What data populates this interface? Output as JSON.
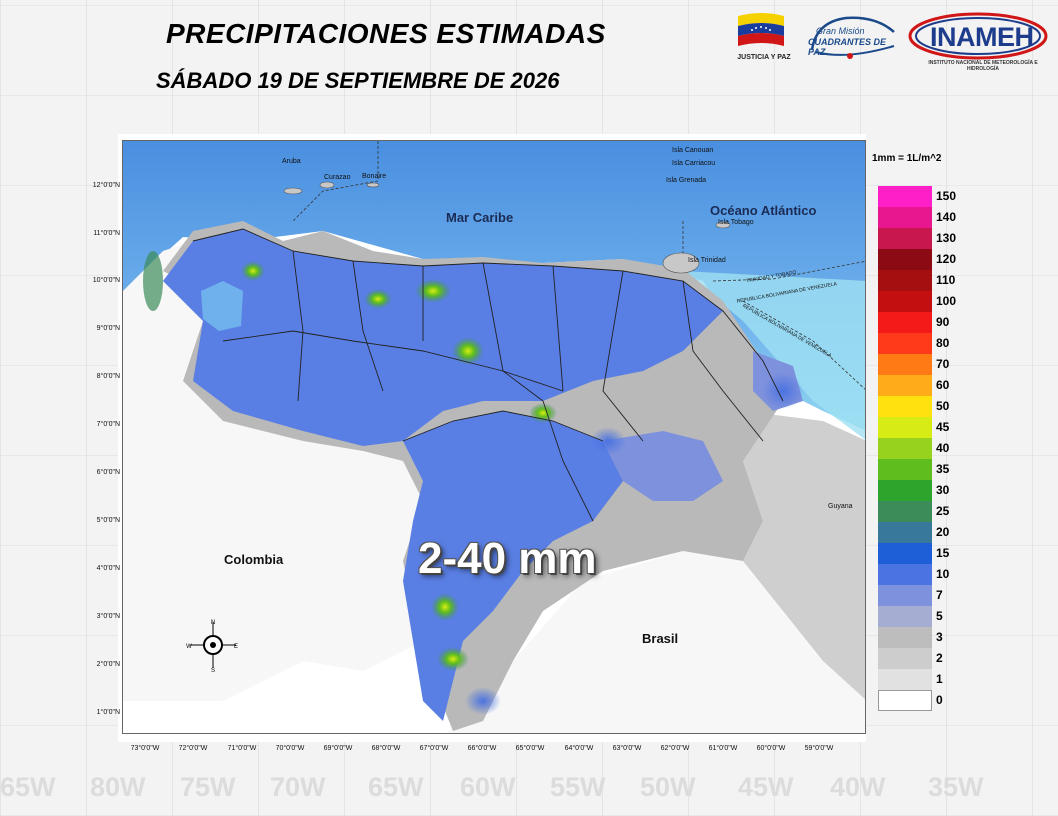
{
  "header": {
    "title": "PRECIPITACIONES ESTIMADAS",
    "date": "SÁBADO 19 DE SEPTIEMBRE DE 2026"
  },
  "logos": {
    "flag_caption": "JUSTICIA Y PAZ",
    "gran_mision_line1": "Gran Misión",
    "gran_mision_line2": "CUADRANTES DE PAZ",
    "inameh": "INAMEH",
    "inameh_caption": "INSTITUTO NACIONAL DE METEOROLOGÍA E HIDROLOGÍA"
  },
  "background_ticks": [
    "65W",
    "80W",
    "75W",
    "70W",
    "65W",
    "60W",
    "55W",
    "50W",
    "45W",
    "40W",
    "35W"
  ],
  "map": {
    "latitude_labels": [
      "12°0'0\"N",
      "11°0'0\"N",
      "10°0'0\"N",
      "9°0'0\"N",
      "8°0'0\"N",
      "7°0'0\"N",
      "6°0'0\"N",
      "5°0'0\"N",
      "4°0'0\"N",
      "3°0'0\"N",
      "2°0'0\"N",
      "1°0'0\"N"
    ],
    "longitude_labels": [
      "73°0'0\"W",
      "72°0'0\"W",
      "71°0'0\"W",
      "70°0'0\"W",
      "69°0'0\"W",
      "68°0'0\"W",
      "67°0'0\"W",
      "66°0'0\"W",
      "65°0'0\"W",
      "64°0'0\"W",
      "63°0'0\"W",
      "62°0'0\"W",
      "61°0'0\"W",
      "60°0'0\"W",
      "59°0'0\"W"
    ],
    "sea_label": "Mar Caribe",
    "ocean_label": "Océano Atlántico",
    "country_colombia": "Colombia",
    "country_brasil": "Brasil",
    "country_guyana": "Guyana",
    "place_aruba": "Aruba",
    "place_curazao": "Curazao",
    "place_bonaire": "Bonaire",
    "place_canouan": "Isla Canouan",
    "place_carriacou": "Isla Carriacou",
    "place_grenada": "Isla Grenada",
    "place_tobago": "Isla Tobago",
    "place_trinidad": "Isla Trinidad",
    "border_note_1": "TRINIDAD Y TOBAGO",
    "border_note_2": "REPUBLICA BOLIVARIANA DE VENEZUELA",
    "border_note_3": "REPUBLICA BOLIVARIANA DE VENEZUELA",
    "rainfall_range": "2-40 mm",
    "compass": {
      "n": "N",
      "s": "S",
      "e": "E",
      "w": "W"
    }
  },
  "legend": {
    "unit_note": "1mm = 1L/m^2",
    "items": [
      {
        "label": "150",
        "color": "#ff1fc8"
      },
      {
        "label": "140",
        "color": "#e8168f"
      },
      {
        "label": "130",
        "color": "#c8164f"
      },
      {
        "label": "120",
        "color": "#8c0a14"
      },
      {
        "label": "110",
        "color": "#a50f0f"
      },
      {
        "label": "100",
        "color": "#c30f0f"
      },
      {
        "label": "90",
        "color": "#f51a1a"
      },
      {
        "label": "80",
        "color": "#ff3a1a"
      },
      {
        "label": "70",
        "color": "#ff7a14"
      },
      {
        "label": "60",
        "color": "#ffab1a"
      },
      {
        "label": "50",
        "color": "#ffe10f"
      },
      {
        "label": "45",
        "color": "#d7ec14"
      },
      {
        "label": "40",
        "color": "#96d21e"
      },
      {
        "label": "35",
        "color": "#5fbd1e"
      },
      {
        "label": "30",
        "color": "#2da52d"
      },
      {
        "label": "25",
        "color": "#3c8c5a"
      },
      {
        "label": "20",
        "color": "#37789b"
      },
      {
        "label": "15",
        "color": "#1e5fd7"
      },
      {
        "label": "10",
        "color": "#4b73e1"
      },
      {
        "label": "7",
        "color": "#7d91dc"
      },
      {
        "label": "5",
        "color": "#a5aed2"
      },
      {
        "label": "3",
        "color": "#bdbdbd"
      },
      {
        "label": "2",
        "color": "#cdcdcd"
      },
      {
        "label": "1",
        "color": "#e1e1e1"
      },
      {
        "label": "0",
        "color": "#ffffff"
      }
    ]
  }
}
